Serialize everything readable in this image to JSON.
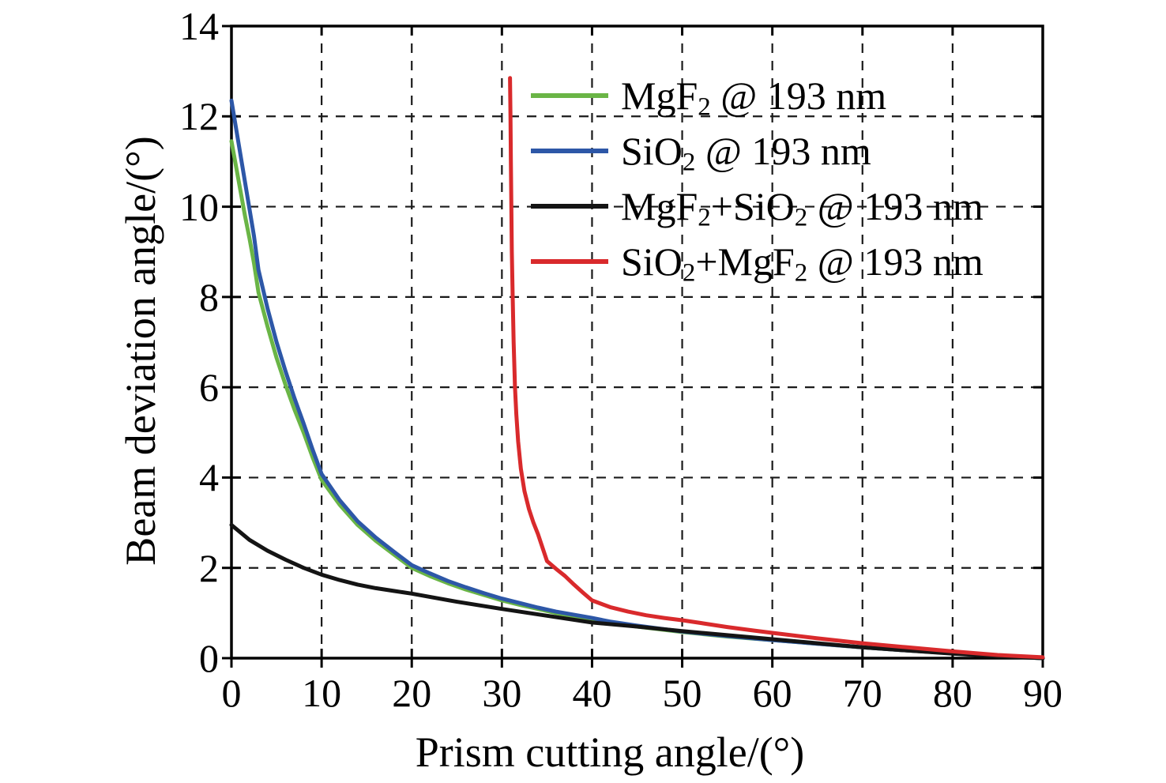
{
  "figure": {
    "background": "#ffffff",
    "axis_color": "#000000",
    "grid_color": "#1a1a1a"
  },
  "chart_data": {
    "type": "line",
    "title": "",
    "xlabel": "Prism cutting angle/(°)",
    "ylabel": "Beam deviation angle/(°)",
    "xlim": [
      0,
      90
    ],
    "ylim": [
      0,
      14
    ],
    "x_ticks": [
      0,
      10,
      20,
      30,
      40,
      50,
      60,
      70,
      80,
      90
    ],
    "y_ticks": [
      0,
      2,
      4,
      6,
      8,
      10,
      12,
      14
    ],
    "grid": "dashed both axes, black",
    "legend": {
      "position": "upper-right-inside",
      "frame": false
    },
    "series": [
      {
        "key": "mgf2",
        "name": "MgF2 @ 193 nm",
        "label_parts": [
          {
            "text": "MgF"
          },
          {
            "text": "2",
            "sub": true
          },
          {
            "text": " @ 193 nm"
          }
        ],
        "color": "#6ab546",
        "x": [
          0,
          0.5,
          1,
          1.5,
          2,
          2.5,
          3,
          4,
          5,
          6,
          7,
          8,
          9,
          10,
          12,
          14,
          16,
          18,
          20,
          22,
          24,
          26,
          28,
          30,
          32,
          34,
          36,
          38,
          40,
          42,
          45,
          50,
          55,
          60,
          65,
          70,
          75,
          80,
          85,
          90
        ],
        "y": [
          11.45,
          10.9,
          10.35,
          9.8,
          9.3,
          8.75,
          8.1,
          7.35,
          6.65,
          6.05,
          5.5,
          5.0,
          4.45,
          3.95,
          3.4,
          2.95,
          2.6,
          2.3,
          2.0,
          1.82,
          1.66,
          1.52,
          1.4,
          1.28,
          1.18,
          1.09,
          1.0,
          0.93,
          0.86,
          0.79,
          0.7,
          0.58,
          0.48,
          0.4,
          0.32,
          0.24,
          0.17,
          0.11,
          0.05,
          0.0
        ]
      },
      {
        "key": "sio2",
        "name": "SiO2 @ 193 nm",
        "label_parts": [
          {
            "text": "SiO"
          },
          {
            "text": "2",
            "sub": true
          },
          {
            "text": " @ 193 nm"
          }
        ],
        "color": "#2d57a7",
        "x": [
          0,
          0.5,
          1,
          1.5,
          2,
          2.5,
          3,
          4,
          5,
          6,
          7,
          8,
          9,
          10,
          12,
          14,
          16,
          18,
          20,
          22,
          24,
          26,
          28,
          30,
          32,
          34,
          36,
          38,
          40,
          42,
          45,
          50,
          55,
          60,
          65,
          70,
          75,
          80,
          85,
          90
        ],
        "y": [
          12.35,
          11.75,
          11.15,
          10.55,
          9.95,
          9.35,
          8.6,
          7.75,
          7.0,
          6.35,
          5.75,
          5.2,
          4.62,
          4.08,
          3.5,
          3.03,
          2.67,
          2.36,
          2.06,
          1.88,
          1.71,
          1.57,
          1.44,
          1.32,
          1.22,
          1.12,
          1.03,
          0.96,
          0.89,
          0.81,
          0.72,
          0.59,
          0.49,
          0.4,
          0.32,
          0.24,
          0.17,
          0.11,
          0.05,
          0.0
        ]
      },
      {
        "key": "mgf2_sio2",
        "name": "MgF2+SiO2 @ 193 nm",
        "label_parts": [
          {
            "text": "MgF"
          },
          {
            "text": "2",
            "sub": true
          },
          {
            "text": "+SiO"
          },
          {
            "text": "2",
            "sub": true
          },
          {
            "text": " @ 193 nm"
          }
        ],
        "color": "#141414",
        "x": [
          0,
          2,
          4,
          6,
          8,
          10,
          12,
          14,
          16,
          18,
          20,
          25,
          30,
          35,
          40,
          45,
          50,
          55,
          60,
          65,
          70,
          75,
          80,
          85,
          90
        ],
        "y": [
          2.95,
          2.62,
          2.38,
          2.18,
          2.0,
          1.85,
          1.73,
          1.63,
          1.55,
          1.49,
          1.43,
          1.25,
          1.09,
          0.94,
          0.79,
          0.7,
          0.6,
          0.51,
          0.42,
          0.33,
          0.24,
          0.17,
          0.1,
          0.04,
          0.0
        ]
      },
      {
        "key": "sio2_mgf2",
        "name": "SiO2+MgF2 @ 193 nm",
        "label_parts": [
          {
            "text": "SiO"
          },
          {
            "text": "2",
            "sub": true
          },
          {
            "text": "+MgF"
          },
          {
            "text": "2",
            "sub": true
          },
          {
            "text": " @ 193 nm"
          }
        ],
        "color": "#d92a2c",
        "x": [
          30.9,
          30.95,
          31.0,
          31.05,
          31.1,
          31.2,
          31.3,
          31.45,
          31.6,
          31.8,
          32.1,
          32.5,
          33,
          33.5,
          34,
          35,
          36,
          37,
          38,
          39,
          40,
          42,
          44,
          46,
          48,
          50,
          52,
          55,
          58,
          60,
          65,
          70,
          75,
          80,
          85,
          90
        ],
        "y": [
          12.85,
          12.0,
          11.0,
          10.0,
          9.0,
          8.0,
          7.0,
          6.0,
          5.4,
          4.8,
          4.2,
          3.7,
          3.3,
          3.0,
          2.75,
          2.15,
          1.98,
          1.82,
          1.63,
          1.45,
          1.28,
          1.13,
          1.03,
          0.95,
          0.89,
          0.84,
          0.78,
          0.69,
          0.61,
          0.56,
          0.44,
          0.33,
          0.24,
          0.15,
          0.07,
          0.02
        ]
      }
    ]
  }
}
